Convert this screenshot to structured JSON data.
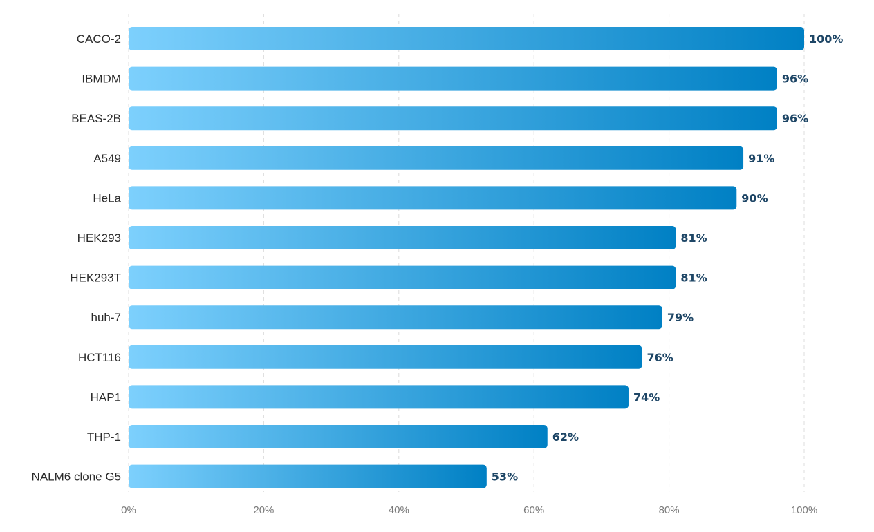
{
  "chart_data": {
    "type": "bar",
    "orientation": "horizontal",
    "title": "",
    "xlabel": "",
    "ylabel": "",
    "categories": [
      "CACO-2",
      "IBMDM",
      "BEAS-2B",
      "A549",
      "HeLa",
      "HEK293",
      "HEK293T",
      "huh-7",
      "HCT116",
      "HAP1",
      "THP-1",
      "NALM6 clone G5"
    ],
    "values": [
      100,
      96,
      96,
      91,
      90,
      81,
      81,
      79,
      76,
      74,
      62,
      53
    ],
    "value_labels": [
      "100%",
      "96%",
      "96%",
      "91%",
      "90%",
      "81%",
      "81%",
      "79%",
      "76%",
      "74%",
      "62%",
      "53%"
    ],
    "xlim": [
      0,
      100
    ],
    "x_ticks": [
      0,
      20,
      40,
      60,
      80,
      100
    ],
    "x_tick_labels": [
      "0%",
      "20%",
      "40%",
      "60%",
      "80%",
      "100%"
    ],
    "grid": true,
    "bar_gradient": [
      "#7dd0fd",
      "#0080c4"
    ],
    "value_label_color": "#1e4666"
  }
}
